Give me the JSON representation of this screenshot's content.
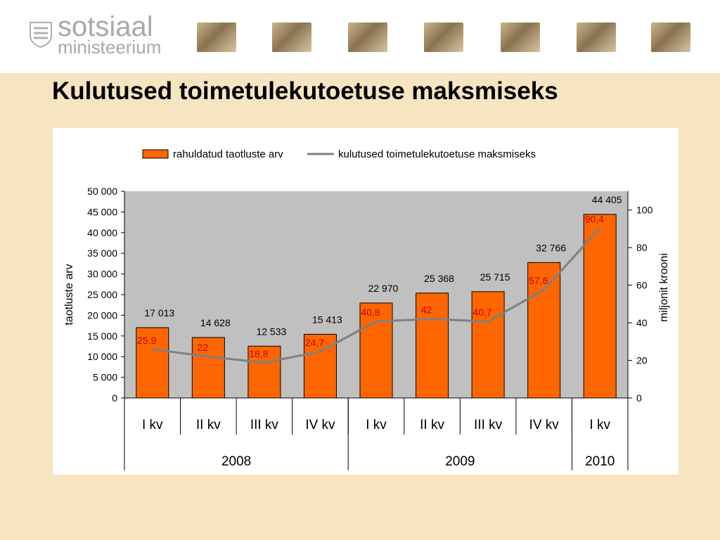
{
  "header": {
    "logo_line1": "sotsiaal",
    "logo_line2": "ministeerium",
    "logo_icon": "coat-of-arms-icon",
    "photos": [
      "photo-1",
      "photo-2",
      "photo-3",
      "photo-4",
      "photo-5",
      "photo-6",
      "photo-7"
    ]
  },
  "page": {
    "title": "Kulutused toimetulekutoetuse maksmiseks"
  },
  "colors": {
    "background": "#f6e5c0",
    "bar_fill": "#ff6600",
    "bar_stroke": "#000000",
    "line": "#808080",
    "plot_area": "#c0c0c0",
    "line_label": "#cc0000"
  },
  "chart_data": {
    "type": "bar",
    "legend_position": "top",
    "categories": [
      "I kv",
      "II kv",
      "III kv",
      "IV kv",
      "I kv",
      "II kv",
      "III kv",
      "IV kv",
      "I kv"
    ],
    "year_groups": [
      {
        "label": "2008",
        "count": 4
      },
      {
        "label": "2009",
        "count": 4
      },
      {
        "label": "2010",
        "count": 1
      }
    ],
    "series": [
      {
        "name": "rahuldatud taotluste arv",
        "type": "bar",
        "axis": "left",
        "values": [
          17013,
          14628,
          12533,
          15413,
          22970,
          25368,
          25715,
          32766,
          44405
        ],
        "labels": [
          "17 013",
          "14 628",
          "12 533",
          "15 413",
          "22 970",
          "25 368",
          "25 715",
          "32 766",
          "44 405"
        ]
      },
      {
        "name": "kulutused toimetulekutoetuse maksmiseks",
        "type": "line",
        "axis": "right",
        "values": [
          25.9,
          22,
          18.8,
          24.7,
          40.8,
          42,
          40.7,
          57.6,
          90.4
        ],
        "labels": [
          "25,9",
          "22",
          "18,8",
          "24,7",
          "40,8",
          "42",
          "40,7",
          "57,6",
          "90,4"
        ]
      }
    ],
    "y_left": {
      "label": "taotluste arv",
      "min": 0,
      "max": 50000,
      "ticks": [
        0,
        5000,
        10000,
        15000,
        20000,
        25000,
        30000,
        35000,
        40000,
        45000,
        50000
      ],
      "tick_labels": [
        "0",
        "5 000",
        "10 000",
        "15 000",
        "20 000",
        "25 000",
        "30 000",
        "35 000",
        "40 000",
        "45 000",
        "50 000"
      ]
    },
    "y_right": {
      "label": "miljonit krooni",
      "min": 0,
      "max": 110,
      "ticks": [
        0,
        20,
        40,
        60,
        80,
        100
      ],
      "tick_labels": [
        "0",
        "20",
        "40",
        "60",
        "80",
        "100"
      ]
    },
    "grid": false
  }
}
